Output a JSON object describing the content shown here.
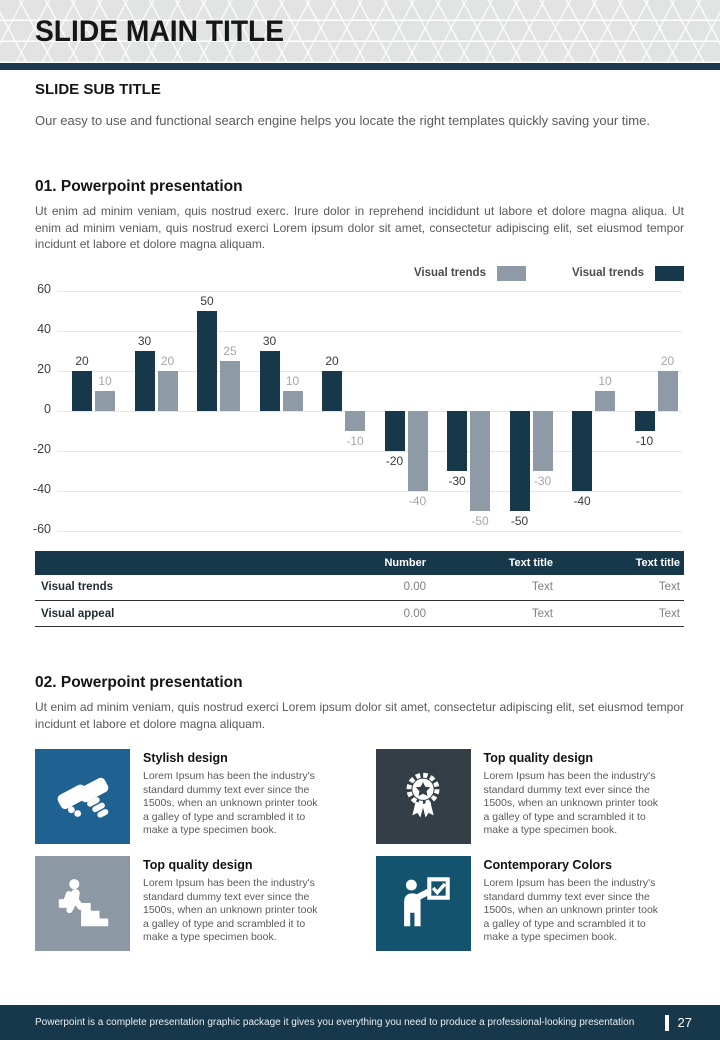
{
  "header": {
    "title": "SLIDE MAIN TITLE"
  },
  "subtitle": "SLIDE SUB TITLE",
  "intro": "Our easy to use and functional search engine helps you locate the right templates quickly saving your time.",
  "sections": [
    {
      "heading": "01. Powerpoint presentation",
      "body": "Ut enim ad minim veniam, quis nostrud exerc. Irure dolor in reprehend incididunt ut labore et dolore magna aliqua. Ut enim ad minim veniam, quis nostrud exerci  Lorem ipsum dolor sit amet, consectetur adipiscing elit, set eiusmod tempor incidunt et labore et dolore magna aliquam."
    },
    {
      "heading": "02. Powerpoint presentation",
      "body": "Ut enim ad minim veniam, quis nostrud exerci  Lorem ipsum dolor sit amet, consectetur adipiscing elit, set eiusmod tempor incidunt et labore et dolore magna aliquam."
    }
  ],
  "chart_data": {
    "type": "bar",
    "categories": [
      "",
      "",
      "",
      "",
      "",
      "",
      "",
      "",
      "",
      ""
    ],
    "series": [
      {
        "name": "Visual trends",
        "color": "#17384B",
        "label_color": "#3c3c3c",
        "values": [
          20,
          30,
          50,
          30,
          20,
          -20,
          -30,
          -50,
          -40,
          -10
        ]
      },
      {
        "name": "Visual trends",
        "color": "#8E9BA7",
        "label_color": "#a6a6a6",
        "values": [
          10,
          20,
          25,
          10,
          -10,
          -40,
          -50,
          -30,
          10,
          20
        ]
      }
    ],
    "legend": [
      {
        "label": "Visual trends",
        "color": "#8E9BA7"
      },
      {
        "label": "Visual trends",
        "color": "#17384B"
      }
    ],
    "title": "",
    "xlabel": "",
    "ylabel": "",
    "ylim": [
      -60,
      60
    ],
    "yticks": [
      60,
      40,
      20,
      0,
      -20,
      -40,
      -60
    ],
    "grid": true,
    "legend_position": "top-right",
    "data_labels": true
  },
  "table": {
    "columns": [
      "",
      "Number",
      "Text title",
      "Text title"
    ],
    "rows": [
      {
        "label": "Visual trends",
        "cells": [
          "0.00",
          "Text",
          "Text"
        ]
      },
      {
        "label": "Visual appeal",
        "cells": [
          "0.00",
          "Text",
          "Text"
        ]
      }
    ]
  },
  "cards": [
    {
      "title": "Stylish design",
      "icon": "handshake-icon",
      "color": "#1F6292",
      "text": "Lorem Ipsum has been the industry's standard dummy text ever since the 1500s, when an unknown printer took a galley of type and scrambled it to make a type specimen book."
    },
    {
      "title": "Top quality design",
      "icon": "award-ribbon-icon",
      "color": "#343E47",
      "text": "Lorem Ipsum has been the industry's standard dummy text ever since the 1500s, when an unknown printer took a galley of type and scrambled it to make a type specimen book."
    },
    {
      "title": "Top quality design",
      "icon": "career-stairs-icon",
      "color": "#8C99A4",
      "text": "Lorem Ipsum has been the industry's standard dummy text ever since the 1500s, when an unknown printer took a galley of type and scrambled it to make a type specimen book."
    },
    {
      "title": "Contemporary Colors",
      "icon": "presenter-icon",
      "color": "#14536E",
      "text": "Lorem Ipsum has been the industry's standard dummy text ever since the 1500s, when an unknown printer took a galley of type and scrambled it to make a type specimen book."
    }
  ],
  "footer": {
    "text": "Powerpoint is a complete presentation graphic package it gives you everything you need to produce a professional-looking presentation",
    "page": "27"
  },
  "colors": {
    "accent_dark": "#17384B",
    "accent_gray": "#8E9BA7",
    "divider": "#1C3A4D"
  }
}
